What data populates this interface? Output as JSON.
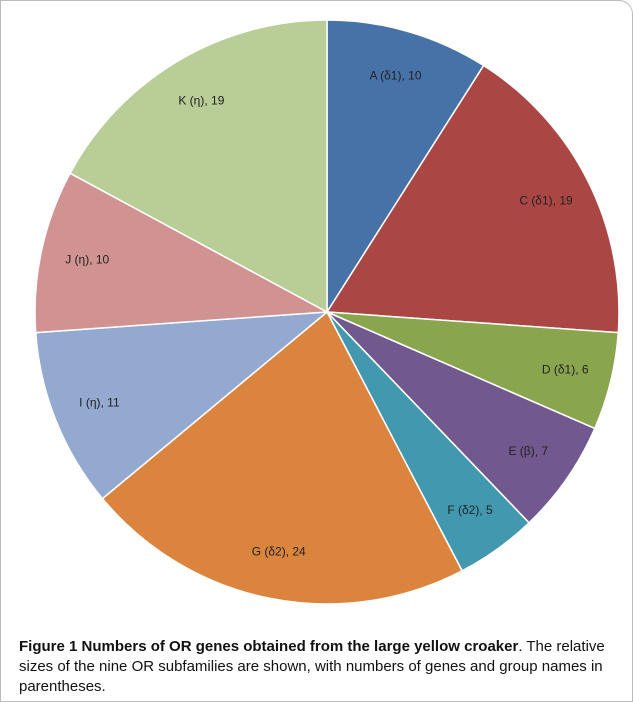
{
  "chart_data": {
    "type": "pie",
    "categories": [
      "A (δ1)",
      "C (δ1)",
      "D (δ1)",
      "E (β)",
      "F (δ2)",
      "G (δ2)",
      "I (η)",
      "J (η)",
      "K (η)"
    ],
    "values": [
      10,
      19,
      6,
      7,
      5,
      24,
      11,
      10,
      19
    ],
    "colors": [
      "#4672a8",
      "#aa4744",
      "#89a54e",
      "#71588f",
      "#4298af",
      "#db843d",
      "#93a9cf",
      "#d19392",
      "#b9cd96"
    ]
  },
  "caption": {
    "label": "Figure 1",
    "title": "Numbers of OR genes obtained from the large yellow croaker",
    "text": ". The relative sizes of the nine OR subfamilies are shown, with numbers of genes and group names in parentheses."
  }
}
